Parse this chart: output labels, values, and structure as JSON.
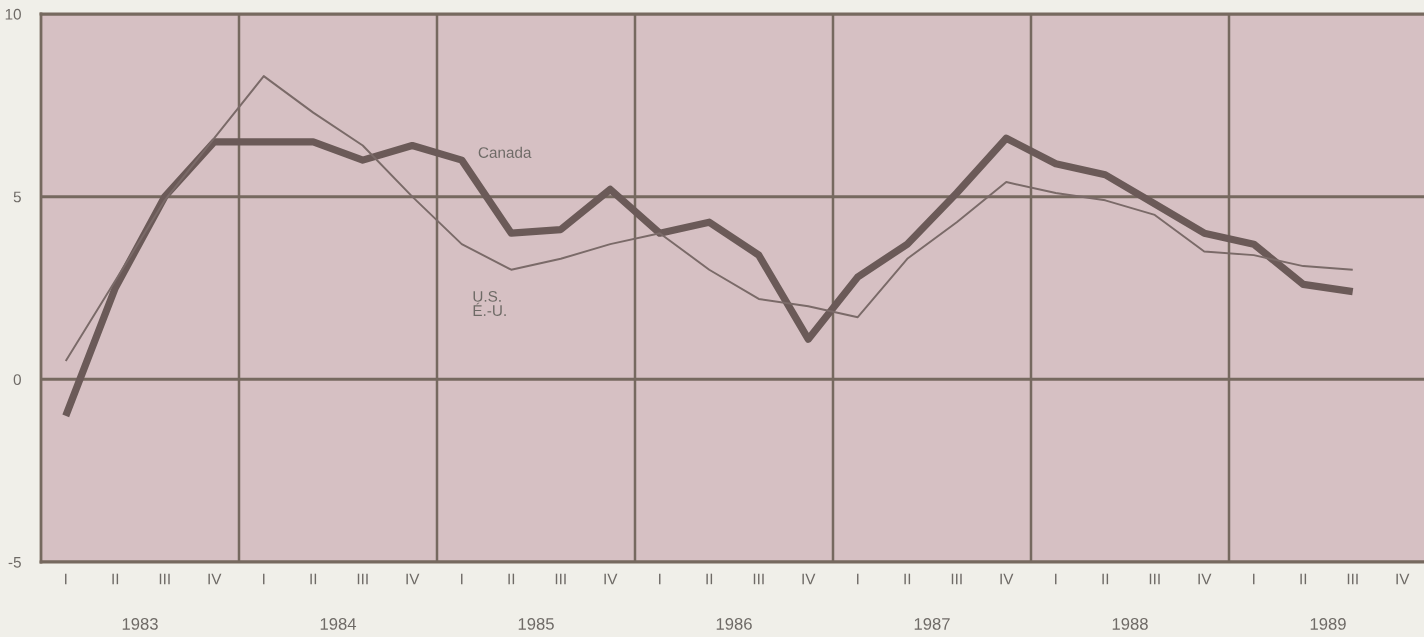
{
  "chart_data": {
    "type": "line",
    "categories": [
      "I",
      "II",
      "III",
      "IV",
      "I",
      "II",
      "III",
      "IV",
      "I",
      "II",
      "III",
      "IV",
      "I",
      "II",
      "III",
      "IV",
      "I",
      "II",
      "III",
      "IV",
      "I",
      "II",
      "III",
      "IV",
      "I",
      "II",
      "III",
      "IV"
    ],
    "series": [
      {
        "name": "Canada",
        "color": "#6b5a58",
        "values": [
          -1.0,
          2.5,
          5.0,
          6.5,
          6.5,
          6.5,
          6.0,
          6.4,
          6.0,
          4.0,
          4.1,
          5.2,
          4.0,
          4.3,
          3.4,
          1.1,
          2.8,
          3.7,
          5.1,
          6.6,
          5.9,
          5.6,
          4.8,
          4.0,
          3.7,
          2.6,
          2.4,
          null
        ]
      },
      {
        "name": "U.S.\nÉ.-U.",
        "color": "#7a6a68",
        "values": [
          0.5,
          2.7,
          4.9,
          6.6,
          8.3,
          7.3,
          6.4,
          5.0,
          3.7,
          3.0,
          3.3,
          3.7,
          4.0,
          3.0,
          2.2,
          2.0,
          1.7,
          3.3,
          4.3,
          5.4,
          5.1,
          4.9,
          4.5,
          3.5,
          3.4,
          3.1,
          3.0,
          null
        ]
      }
    ],
    "annotations": [
      "1983",
      "1984",
      "1985",
      "1986",
      "1987",
      "1988",
      "1989"
    ],
    "ylim": [
      -5,
      10
    ],
    "yticks": [
      -5,
      0,
      5,
      10
    ],
    "grid": "y",
    "legend": false,
    "marker": "none",
    "line_style": "solid"
  }
}
